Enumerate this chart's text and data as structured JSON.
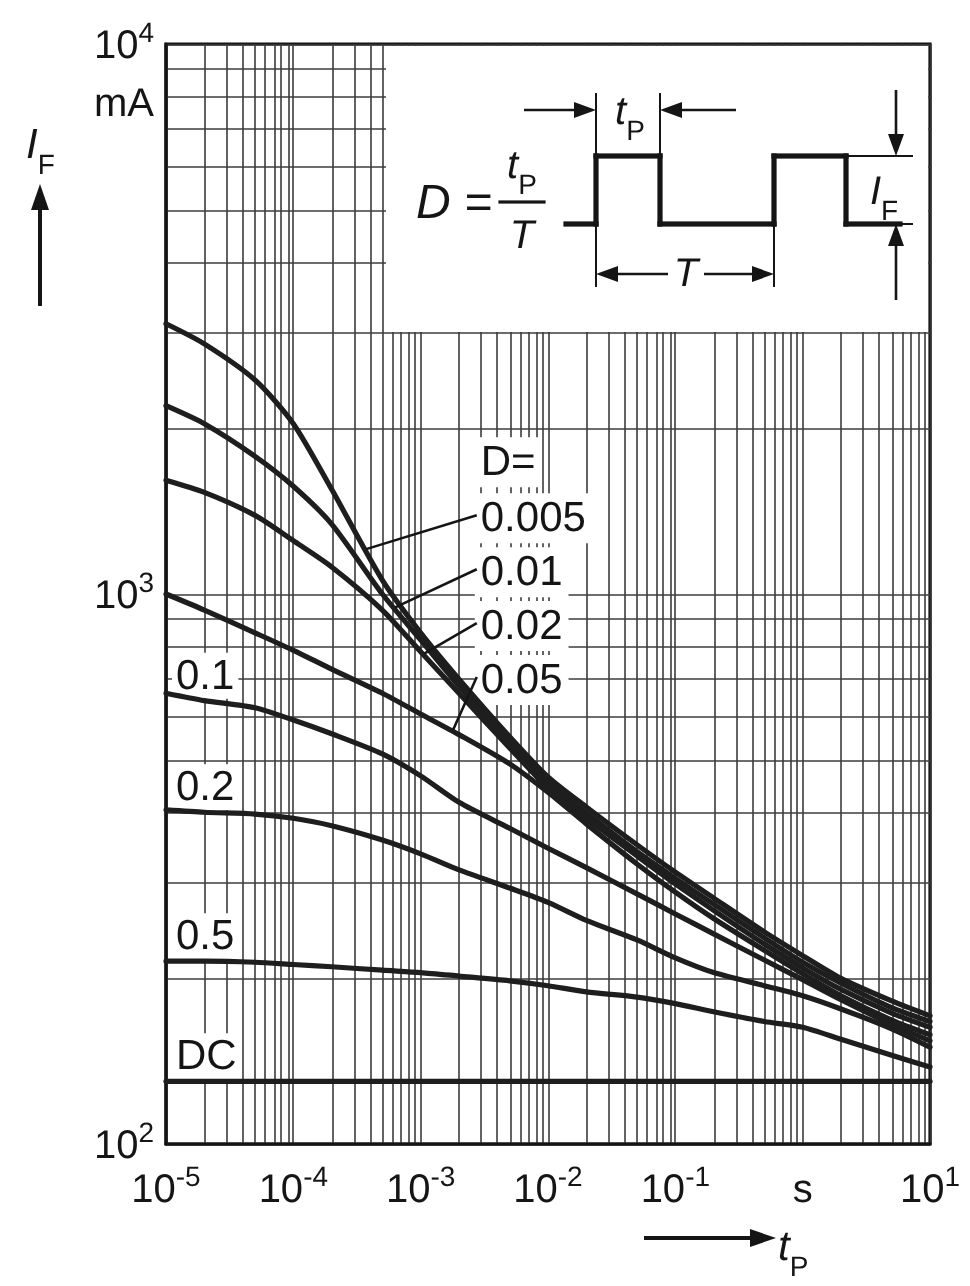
{
  "chart_data": {
    "type": "line",
    "xlabel": "t$_{P}$",
    "ylabel": "I$_{F}$",
    "legend_title": "D=",
    "legend": "center",
    "annotations": [
      "mA",
      "D =",
      "t$_{P}$",
      "T",
      "t$_{P}$",
      "T",
      "I$_{F}$"
    ],
    "x": [
      1e-05,
      2e-05,
      5e-05,
      0.0001,
      0.0002,
      0.0005,
      0.001,
      0.002,
      0.005,
      0.01,
      0.02,
      0.05,
      0.1,
      0.2,
      0.5,
      1,
      2,
      5,
      10
    ],
    "series": [
      {
        "name": "0.005",
        "color": "#1e1e1e",
        "values": [
          3100,
          2850,
          2450,
          2040,
          1550,
          1060,
          850,
          700,
          550,
          465,
          410,
          350,
          312,
          280,
          243,
          220,
          200,
          182,
          171
        ]
      },
      {
        "name": "0.01",
        "color": "#1e1e1e",
        "values": [
          2200,
          2040,
          1780,
          1570,
          1340,
          1000,
          825,
          680,
          540,
          455,
          400,
          340,
          304,
          273,
          237,
          214,
          196,
          177,
          167
        ]
      },
      {
        "name": "0.02",
        "color": "#1e1e1e",
        "values": [
          1610,
          1530,
          1390,
          1250,
          1120,
          935,
          785,
          660,
          525,
          444,
          391,
          334,
          297,
          266,
          231,
          209,
          191,
          173,
          163
        ]
      },
      {
        "name": "0.05",
        "color": "#1e1e1e",
        "values": [
          1000,
          935,
          850,
          790,
          730,
          660,
          605,
          555,
          491,
          436,
          382,
          323,
          287,
          257,
          225,
          204,
          186,
          168,
          158
        ]
      },
      {
        "name": "0.1",
        "color": "#1e1e1e",
        "values": [
          660,
          640,
          621,
          590,
          557,
          512,
          467,
          418,
          375,
          345,
          318,
          285,
          262,
          241,
          216,
          199,
          183,
          165,
          154
        ]
      },
      {
        "name": "0.2",
        "color": "#1e1e1e",
        "values": [
          405,
          401,
          398,
          391,
          379,
          357,
          337,
          315,
          292,
          275,
          255,
          235,
          218,
          205,
          194,
          186,
          176,
          162,
          150
        ]
      },
      {
        "name": "0.5",
        "color": "#1e1e1e",
        "values": [
          215,
          215,
          214,
          212,
          210,
          207,
          205,
          202,
          198,
          194,
          189,
          185,
          180,
          174,
          167,
          163,
          155,
          145,
          138
        ]
      },
      {
        "name": "DC",
        "color": "#1e1e1e",
        "x": [
          1e-05,
          10
        ],
        "values": [
          130,
          130
        ]
      }
    ],
    "xlim": [
      1e-05,
      10
    ],
    "ylim": [
      100,
      10000
    ],
    "xticks": [
      {
        "value": 1e-05,
        "label": "10$^{-5}$"
      },
      {
        "value": 2e-05,
        "label": null
      },
      {
        "value": 3e-05,
        "label": null
      },
      {
        "value": 4e-05,
        "label": null
      },
      {
        "value": 5e-05,
        "label": null
      },
      {
        "value": 6e-05,
        "label": null
      },
      {
        "value": 7e-05,
        "label": null
      },
      {
        "value": 8e-05,
        "label": null
      },
      {
        "value": 9e-05,
        "label": null
      },
      {
        "value": 0.0001,
        "label": "10$^{-4}$"
      },
      {
        "value": 0.0002,
        "label": null
      },
      {
        "value": 0.0003,
        "label": null
      },
      {
        "value": 0.0004,
        "label": null
      },
      {
        "value": 0.0005,
        "label": null
      },
      {
        "value": 0.0006,
        "label": null
      },
      {
        "value": 0.0007,
        "label": null
      },
      {
        "value": 0.0008,
        "label": null
      },
      {
        "value": 0.0009,
        "label": null
      },
      {
        "value": 0.001,
        "label": "10$^{-3}$"
      },
      {
        "value": 0.002,
        "label": null
      },
      {
        "value": 0.003,
        "label": null
      },
      {
        "value": 0.004,
        "label": null
      },
      {
        "value": 0.005,
        "label": null
      },
      {
        "value": 0.006,
        "label": null
      },
      {
        "value": 0.007,
        "label": null
      },
      {
        "value": 0.008,
        "label": null
      },
      {
        "value": 0.009,
        "label": null
      },
      {
        "value": 0.01,
        "label": "10$^{-2}$"
      },
      {
        "value": 0.02,
        "label": null
      },
      {
        "value": 0.03,
        "label": null
      },
      {
        "value": 0.04,
        "label": null
      },
      {
        "value": 0.05,
        "label": null
      },
      {
        "value": 0.06,
        "label": null
      },
      {
        "value": 0.07,
        "label": null
      },
      {
        "value": 0.08,
        "label": null
      },
      {
        "value": 0.09,
        "label": null
      },
      {
        "value": 0.1,
        "label": "10$^{-1}$"
      },
      {
        "value": 0.2,
        "label": null
      },
      {
        "value": 0.3,
        "label": null
      },
      {
        "value": 0.4,
        "label": null
      },
      {
        "value": 0.5,
        "label": null
      },
      {
        "value": 0.6,
        "label": null
      },
      {
        "value": 0.7,
        "label": null
      },
      {
        "value": 0.8,
        "label": null
      },
      {
        "value": 0.9,
        "label": null
      },
      {
        "value": 1,
        "label": "s"
      },
      {
        "value": 2,
        "label": null
      },
      {
        "value": 3,
        "label": null
      },
      {
        "value": 4,
        "label": null
      },
      {
        "value": 5,
        "label": null
      },
      {
        "value": 6,
        "label": null
      },
      {
        "value": 7,
        "label": null
      },
      {
        "value": 8,
        "label": null
      },
      {
        "value": 9,
        "label": null
      },
      {
        "value": 10,
        "label": "10$^{1}$"
      }
    ],
    "yticks": [
      {
        "value": 100,
        "label": "10$^{2}$"
      },
      {
        "value": 200,
        "label": null
      },
      {
        "value": 300,
        "label": null
      },
      {
        "value": 400,
        "label": null
      },
      {
        "value": 500,
        "label": null
      },
      {
        "value": 600,
        "label": null
      },
      {
        "value": 700,
        "label": null
      },
      {
        "value": 800,
        "label": null
      },
      {
        "value": 900,
        "label": null
      },
      {
        "value": 1000,
        "label": "10$^{3}$"
      },
      {
        "value": 2000,
        "label": null
      },
      {
        "value": 3000,
        "label": null
      },
      {
        "value": 4000,
        "label": null
      },
      {
        "value": 5000,
        "label": null
      },
      {
        "value": 6000,
        "label": null
      },
      {
        "value": 7000,
        "label": null
      },
      {
        "value": 8000,
        "label": null
      },
      {
        "value": 9000,
        "label": null
      },
      {
        "value": 10000,
        "label": "10$^{4}$"
      }
    ],
    "log": "xy",
    "grid": true,
    "marker": "none"
  }
}
